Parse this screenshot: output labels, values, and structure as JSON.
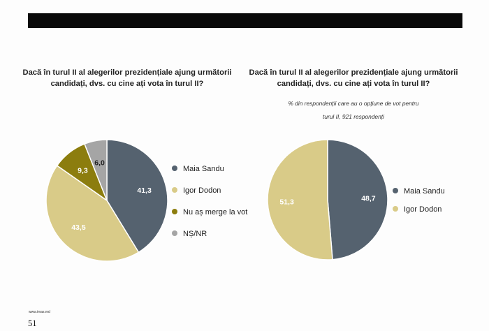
{
  "header_bar": "",
  "footer": {
    "url": "www.imas.md",
    "page_number": "51"
  },
  "colors": {
    "maia_sandu": "#55626f",
    "igor_dodon": "#d9cb88",
    "nu_as_merge": "#8c7d0e",
    "ns_nr": "#a5a5a5"
  },
  "chart_data": [
    {
      "type": "pie",
      "title": "Dacă în turul II al alegerilor prezidențiale ajung următorii candidați, dvs. cu cine ați vota în turul II?",
      "subtitle": "",
      "slices": [
        {
          "label": "Maia Sandu",
          "value": 41.3,
          "value_label": "41,3",
          "color": "#55626f",
          "label_color": "#ffffff"
        },
        {
          "label": "Igor Dodon",
          "value": 43.5,
          "value_label": "43,5",
          "color": "#d9cb88",
          "label_color": "#ffffff"
        },
        {
          "label": "Nu aș merge la vot",
          "value": 9.3,
          "value_label": "9,3",
          "color": "#8c7d0e",
          "label_color": "#ffffff"
        },
        {
          "label": "NȘ/NR",
          "value": 6.0,
          "value_label": "6,0",
          "color": "#a5a5a5",
          "label_color": "#222222"
        }
      ],
      "start_angle_deg": 0,
      "direction": "clockwise",
      "legend": "right"
    },
    {
      "type": "pie",
      "title": "Dacă în turul II al alegerilor prezidențiale ajung următorii candidați, dvs. cu cine ați vota în turul II?",
      "subtitle": "% din respondenții care au o opțiune de vot pentru turul II, 921 respondenți",
      "slices": [
        {
          "label": "Maia Sandu",
          "value": 48.7,
          "value_label": "48,7",
          "color": "#55626f",
          "label_color": "#ffffff"
        },
        {
          "label": "Igor Dodon",
          "value": 51.3,
          "value_label": "51,3",
          "color": "#d9cb88",
          "label_color": "#ffffff"
        }
      ],
      "start_angle_deg": 0,
      "direction": "clockwise",
      "legend": "right"
    }
  ]
}
